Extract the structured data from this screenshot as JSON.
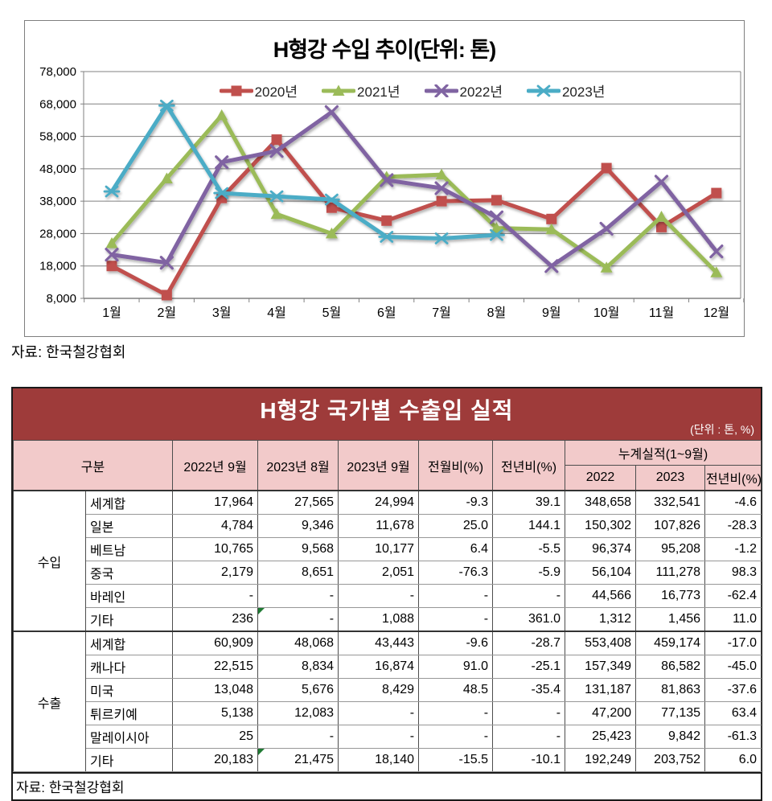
{
  "source_chart": "자료: 한국철강협회",
  "chart_data": {
    "type": "line",
    "title": "H형강 수입 추이(단위: 톤)",
    "categories": [
      "1월",
      "2월",
      "3월",
      "4월",
      "5월",
      "6월",
      "7월",
      "8월",
      "9월",
      "10월",
      "11월",
      "12월"
    ],
    "ylim": [
      8000,
      78000
    ],
    "ytick_step": 10000,
    "ytick_labels": [
      "8,000",
      "18,000",
      "28,000",
      "38,000",
      "48,000",
      "58,000",
      "68,000",
      "78,000"
    ],
    "grid": true,
    "legend_position": "top-center-inside",
    "series": [
      {
        "name": "2020년",
        "color": "#c0504d",
        "marker": "square",
        "values": [
          18000,
          9000,
          39000,
          57000,
          36000,
          32000,
          38000,
          38300,
          32500,
          48200,
          30000,
          40500
        ]
      },
      {
        "name": "2021년",
        "color": "#9bbb59",
        "marker": "triangle",
        "values": [
          25000,
          45000,
          64500,
          34000,
          28000,
          45500,
          46200,
          29700,
          29300,
          17500,
          33200,
          16000
        ]
      },
      {
        "name": "2022년",
        "color": "#8064a2",
        "marker": "x",
        "values": [
          21500,
          19000,
          50000,
          53500,
          65500,
          44500,
          42000,
          33000,
          17964,
          29500,
          44000,
          22500
        ]
      },
      {
        "name": "2023년",
        "color": "#4bacc6",
        "marker": "asterisk",
        "values": [
          41000,
          67500,
          40500,
          39500,
          38500,
          27000,
          26500,
          27565,
          null,
          null,
          null,
          null
        ]
      }
    ]
  },
  "table": {
    "title": "H형강 국가별 수출입 실적",
    "unit": "(단위 : 톤, %)",
    "col_group_label": "구분",
    "columns": [
      "2022년 9월",
      "2023년 8월",
      "2023년 9월",
      "전월비(%)",
      "전년비(%)"
    ],
    "cumulative_header": "누계실적(1~9월)",
    "cumulative_columns": [
      "2022",
      "2023",
      "전년비(%)"
    ],
    "groups": [
      {
        "label": "수입",
        "rows": [
          {
            "name": "세계합",
            "cells": [
              "17,964",
              "27,565",
              "24,994",
              "-9.3",
              "39.1",
              "348,658",
              "332,541",
              "-4.6"
            ]
          },
          {
            "name": "일본",
            "cells": [
              "4,784",
              "9,346",
              "11,678",
              "25.0",
              "144.1",
              "150,302",
              "107,826",
              "-28.3"
            ]
          },
          {
            "name": "베트남",
            "cells": [
              "10,765",
              "9,568",
              "10,177",
              "6.4",
              "-5.5",
              "96,374",
              "95,208",
              "-1.2"
            ]
          },
          {
            "name": "중국",
            "cells": [
              "2,179",
              "8,651",
              "2,051",
              "-76.3",
              "-5.9",
              "56,104",
              "111,278",
              "98.3"
            ]
          },
          {
            "name": "바레인",
            "cells": [
              "-",
              "-",
              "-",
              "-",
              "-",
              "44,566",
              "16,773",
              "-62.4"
            ]
          },
          {
            "name": "기타",
            "cells": [
              "236",
              "-",
              "1,088",
              "-",
              "361.0",
              "1,312",
              "1,456",
              "11.0"
            ],
            "flag_col": 1
          }
        ]
      },
      {
        "label": "수출",
        "rows": [
          {
            "name": "세계합",
            "cells": [
              "60,909",
              "48,068",
              "43,443",
              "-9.6",
              "-28.7",
              "553,408",
              "459,174",
              "-17.0"
            ]
          },
          {
            "name": "캐나다",
            "cells": [
              "22,515",
              "8,834",
              "16,874",
              "91.0",
              "-25.1",
              "157,349",
              "86,582",
              "-45.0"
            ]
          },
          {
            "name": "미국",
            "cells": [
              "13,048",
              "5,676",
              "8,429",
              "48.5",
              "-35.4",
              "131,187",
              "81,863",
              "-37.6"
            ]
          },
          {
            "name": "튀르키예",
            "cells": [
              "5,138",
              "12,083",
              "-",
              "-",
              "-",
              "47,200",
              "77,135",
              "63.4"
            ]
          },
          {
            "name": "말레이시아",
            "cells": [
              "25",
              "-",
              "-",
              "-",
              "-",
              "25,423",
              "9,842",
              "-61.3"
            ]
          },
          {
            "name": "기타",
            "cells": [
              "20,183",
              "21,475",
              "18,140",
              "-15.5",
              "-10.1",
              "192,249",
              "203,752",
              "6.0"
            ],
            "flag_col": 1
          }
        ]
      }
    ],
    "source": "자료: 한국철강협회"
  },
  "colors": {
    "table_title_bg": "#9e3b3a",
    "table_header_bg": "#f2caca",
    "flag_green": "#1f7a33",
    "grid_gray": "#808080"
  }
}
